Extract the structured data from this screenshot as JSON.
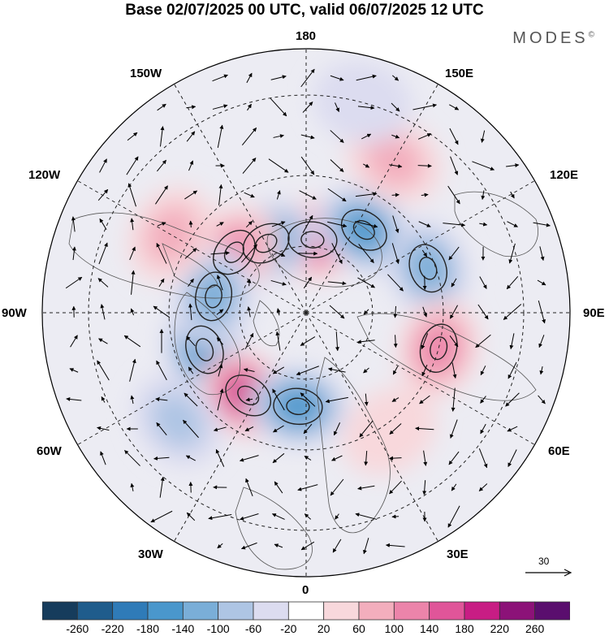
{
  "title": "Base 02/07/2025 00 UTC, valid 06/07/2025 12 UTC",
  "brand": "MODES",
  "brand_mark": "©",
  "longitude_labels": {
    "top": "180",
    "top_left": "150W",
    "top_right": "150E",
    "upper_left": "120W",
    "upper_right": "120E",
    "left": "90W",
    "right": "90E",
    "lower_left": "60W",
    "lower_right": "60E",
    "bottom_left": "30W",
    "bottom_right": "30E",
    "bottom": "0"
  },
  "reference_vector": {
    "value": "30"
  },
  "colorbar": {
    "colors": [
      "#163c5c",
      "#1f5c8c",
      "#2f7bb8",
      "#4a97cc",
      "#7aaed8",
      "#aec5e4",
      "#dcdcf0",
      "#ffffff",
      "#f8d8dc",
      "#f3aebd",
      "#ec84aa",
      "#e05599",
      "#c81d84",
      "#8c1278",
      "#5a0e6e"
    ],
    "ticks": [
      "-260",
      "-220",
      "-180",
      "-140",
      "-100",
      "-60",
      "-20",
      "20",
      "60",
      "100",
      "140",
      "180",
      "220",
      "260"
    ]
  },
  "anomalies": [
    {
      "lon": 175,
      "lat": 68,
      "value": 160
    },
    {
      "lon": -150,
      "lat": 66,
      "value": -140
    },
    {
      "lon": -130,
      "lat": 62,
      "value": 120
    },
    {
      "lon": 145,
      "lat": 60,
      "value": -160
    },
    {
      "lon": 110,
      "lat": 52,
      "value": -120
    },
    {
      "lon": 75,
      "lat": 50,
      "value": 110
    },
    {
      "lon": -70,
      "lat": 58,
      "value": -140
    },
    {
      "lon": -35,
      "lat": 60,
      "value": 200
    },
    {
      "lon": -5,
      "lat": 62,
      "value": -150
    },
    {
      "lon": -100,
      "lat": 62,
      "value": -110
    },
    {
      "lon": -50,
      "lat": 42,
      "value": -80
    },
    {
      "lon": 150,
      "lat": 40,
      "value": 60
    },
    {
      "lon": 35,
      "lat": 48,
      "value": 40
    },
    {
      "lon": -120,
      "lat": 45,
      "value": 60
    },
    {
      "lon": 165,
      "lat": 30,
      "value": -40
    }
  ]
}
